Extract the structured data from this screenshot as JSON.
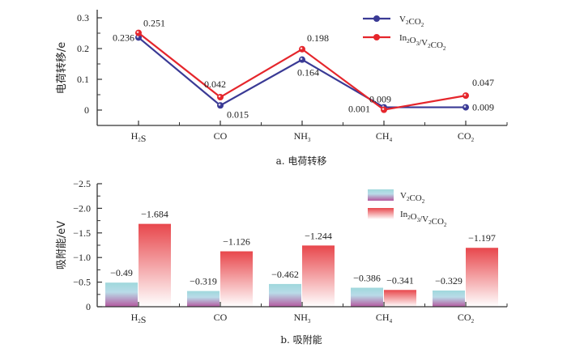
{
  "chart_data": [
    {
      "type": "line",
      "caption": "a. 电荷转移",
      "ylabel": "电荷转移/e",
      "xlabel": "",
      "categories": [
        {
          "base": "H",
          "sub": "2",
          "rest": "S"
        },
        {
          "base": "CO",
          "sub": "",
          "rest": ""
        },
        {
          "base": "NH",
          "sub": "3",
          "rest": ""
        },
        {
          "base": "CH",
          "sub": "4",
          "rest": ""
        },
        {
          "base": "CO",
          "sub": "2",
          "rest": ""
        }
      ],
      "category_names": [
        "H2S",
        "CO",
        "NH3",
        "CH4",
        "CO2"
      ],
      "ylim": [
        -0.05,
        0.325
      ],
      "yticks": [
        0,
        0.1,
        0.2,
        0.3
      ],
      "ytick_labels": [
        "0",
        "0.1",
        "0.2",
        "0.3"
      ],
      "grid": false,
      "legend_position": "top-right",
      "series": [
        {
          "name": "V2CO2",
          "legend": [
            [
              "V",
              "2"
            ],
            [
              "CO",
              "2"
            ]
          ],
          "color": "#3a3a95",
          "values": [
            0.236,
            0.015,
            0.164,
            0.009,
            0.009
          ],
          "labels": [
            "0.236",
            "0.015",
            "0.164",
            "0.009",
            "0.009"
          ]
        },
        {
          "name": "In2O3/V2CO2",
          "legend": [
            [
              "In",
              "2"
            ],
            [
              "O",
              "3"
            ],
            [
              "/V",
              "2"
            ],
            [
              "CO",
              "2"
            ]
          ],
          "color": "#e5262c",
          "values": [
            0.251,
            0.042,
            0.198,
            0.001,
            0.047
          ],
          "labels": [
            "0.251",
            "0.042",
            "0.198",
            "0.001",
            "0.047"
          ]
        }
      ]
    },
    {
      "type": "bar",
      "caption": "b. 吸附能",
      "ylabel": "吸附能/eV",
      "xlabel": "",
      "category_names": [
        "H2S",
        "CO",
        "NH3",
        "CH4",
        "CO2"
      ],
      "ylim": [
        0,
        -2.5
      ],
      "yticks": [
        0,
        -0.5,
        -1.0,
        -1.5,
        -2.0,
        -2.5
      ],
      "ytick_labels": [
        "0",
        "−0.5",
        "−1.0",
        "−1.5",
        "−2.0",
        "−2.5"
      ],
      "grid": false,
      "legend_position": "top-right",
      "series": [
        {
          "name": "V2CO2",
          "legend": [
            [
              "V",
              "2"
            ],
            [
              "CO",
              "2"
            ]
          ],
          "color_top": "#9fd8dc",
          "color_bottom": "#b4589f",
          "values": [
            -0.49,
            -0.319,
            -0.462,
            -0.386,
            -0.329
          ],
          "labels": [
            "−0.49",
            "−0.319",
            "−0.462",
            "−0.386",
            "−0.329"
          ]
        },
        {
          "name": "In2O3/V2CO2",
          "legend": [
            [
              "In",
              "2"
            ],
            [
              "O",
              "3"
            ],
            [
              "/V",
              "2"
            ],
            [
              "CO",
              "2"
            ]
          ],
          "color_top": "#e8474c",
          "color_bottom": "#ffffff",
          "values": [
            -1.684,
            -1.126,
            -1.244,
            -0.341,
            -1.197
          ],
          "labels": [
            "−1.684",
            "−1.126",
            "−1.244",
            "−0.341",
            "−1.197"
          ]
        }
      ]
    }
  ]
}
